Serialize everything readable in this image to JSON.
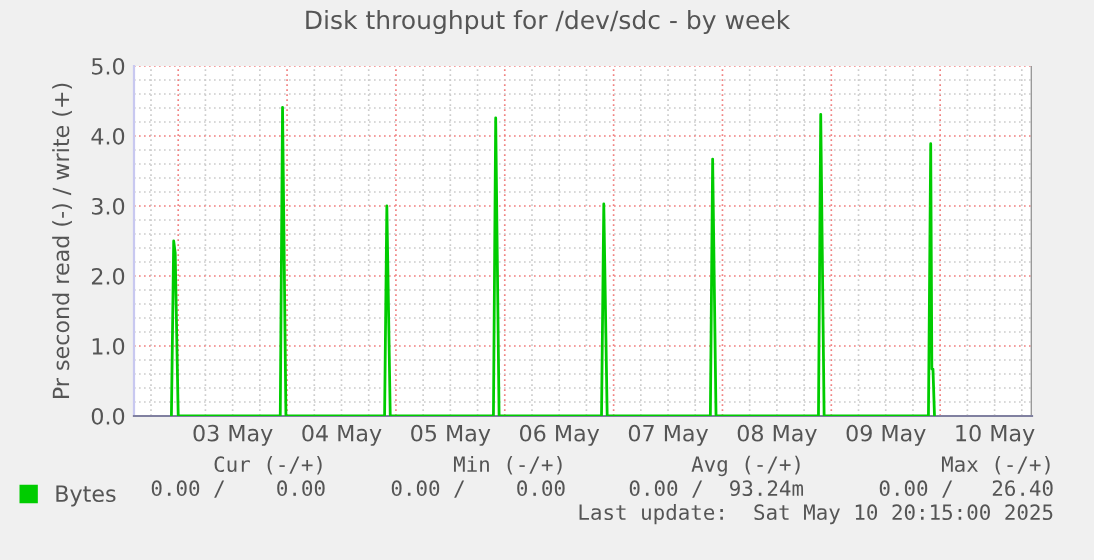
{
  "chart_data": {
    "type": "line",
    "title": "Disk throughput for /dev/sdc - by week",
    "ylabel": "Pr second read (-) / write (+)",
    "x": [
      "2025-05-02T22:30",
      "2025-05-02T23:00",
      "2025-05-02T23:20",
      "2025-05-03T00:00",
      "2025-05-03T22:30",
      "2025-05-03T23:00",
      "2025-05-03T23:45",
      "2025-05-04T21:30",
      "2025-05-04T22:00",
      "2025-05-04T22:45",
      "2025-05-05T21:30",
      "2025-05-05T22:00",
      "2025-05-05T22:45",
      "2025-05-06T21:20",
      "2025-05-06T21:50",
      "2025-05-06T22:35",
      "2025-05-07T21:20",
      "2025-05-07T21:50",
      "2025-05-07T22:35",
      "2025-05-08T21:10",
      "2025-05-08T21:40",
      "2025-05-08T22:25",
      "2025-05-09T21:25",
      "2025-05-09T21:55",
      "2025-05-09T22:10",
      "2025-05-09T22:25",
      "2025-05-09T22:45"
    ],
    "series": [
      {
        "name": "Bytes",
        "color": "#00cc00",
        "values": [
          0,
          2.5,
          2.33,
          0,
          0,
          4.41,
          0,
          0,
          3.0,
          0,
          0,
          4.26,
          0,
          0,
          3.03,
          0,
          0,
          3.67,
          0,
          0,
          4.31,
          0,
          0,
          3.89,
          0.67,
          0.67,
          0
        ]
      }
    ],
    "xlim": [
      "2025-05-02T14:15",
      "2025-05-10T20:15"
    ],
    "xticks": [
      {
        "value": "2025-05-03T00:00",
        "label": null
      },
      {
        "value": "2025-05-03T12:00",
        "label": "03 May"
      },
      {
        "value": "2025-05-04T00:00",
        "label": null
      },
      {
        "value": "2025-05-04T12:00",
        "label": "04 May"
      },
      {
        "value": "2025-05-05T00:00",
        "label": null
      },
      {
        "value": "2025-05-05T12:00",
        "label": "05 May"
      },
      {
        "value": "2025-05-06T00:00",
        "label": null
      },
      {
        "value": "2025-05-06T12:00",
        "label": "06 May"
      },
      {
        "value": "2025-05-07T00:00",
        "label": null
      },
      {
        "value": "2025-05-07T12:00",
        "label": "07 May"
      },
      {
        "value": "2025-05-08T00:00",
        "label": null
      },
      {
        "value": "2025-05-08T12:00",
        "label": "08 May"
      },
      {
        "value": "2025-05-09T00:00",
        "label": null
      },
      {
        "value": "2025-05-09T12:00",
        "label": "09 May"
      },
      {
        "value": "2025-05-10T00:00",
        "label": null
      },
      {
        "value": "2025-05-10T12:00",
        "label": "10 May"
      }
    ],
    "ylim": [
      0,
      5.0
    ],
    "yticks": [
      {
        "value": 0,
        "label": "0.0"
      },
      {
        "value": 1,
        "label": "1.0"
      },
      {
        "value": 2,
        "label": "2.0"
      },
      {
        "value": 3,
        "label": "3.0"
      },
      {
        "value": 4,
        "label": "4.0"
      },
      {
        "value": 5,
        "label": "5.0"
      }
    ],
    "grid": true,
    "legend": "bottom left",
    "annotations": [
      "Cur (-/+)",
      "Min (-/+)",
      "Avg (-/+)",
      "Max (-/+)",
      "0.00 /    0.00",
      "0.00 /    0.00",
      "0.00 /  93.24m",
      "0.00 /   26.40",
      "Last update:  Sat May 10 20:15:00 2025"
    ]
  }
}
